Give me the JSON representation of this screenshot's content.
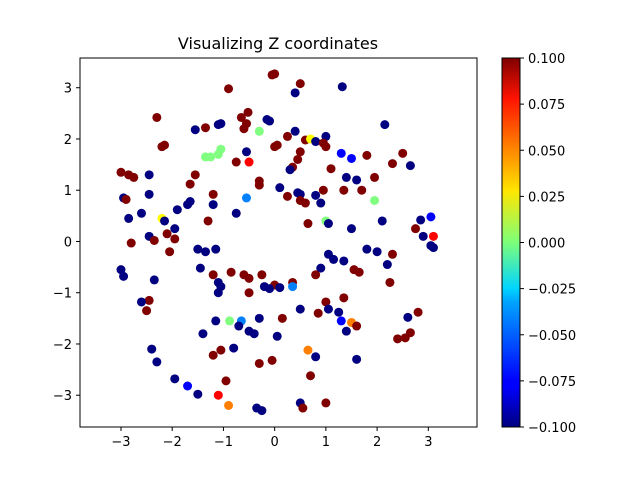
{
  "chart_data": {
    "type": "scatter",
    "title": "Visualizing Z coordinates",
    "xlabel": "",
    "ylabel": "",
    "xlim": [
      -3.8,
      3.95
    ],
    "ylim": [
      -3.62,
      3.58
    ],
    "xticks": [
      -3,
      -2,
      -1,
      0,
      1,
      2,
      3
    ],
    "yticks": [
      -3,
      -2,
      -1,
      0,
      1,
      2,
      3
    ],
    "grid": false,
    "colormap": "jet",
    "colorbar": {
      "range": [
        -0.1,
        0.1
      ],
      "ticks": [
        -0.1,
        -0.075,
        -0.05,
        -0.025,
        0.0,
        0.025,
        0.05,
        0.075,
        0.1
      ],
      "tick_labels": [
        "−0.100",
        "−0.075",
        "−0.050",
        "−0.025",
        "0.000",
        "0.025",
        "0.050",
        "0.075",
        "0.100"
      ]
    },
    "points": [
      {
        "x": -0.05,
        "y": 3.25,
        "z": 0.1
      },
      {
        "x": 0.0,
        "y": 3.27,
        "z": 0.1
      },
      {
        "x": 0.5,
        "y": 3.08,
        "z": 0.1
      },
      {
        "x": 1.32,
        "y": 3.02,
        "z": -0.1
      },
      {
        "x": -0.9,
        "y": 2.98,
        "z": 0.1
      },
      {
        "x": 0.4,
        "y": 2.9,
        "z": -0.1
      },
      {
        "x": -0.52,
        "y": 2.52,
        "z": 0.1
      },
      {
        "x": -2.3,
        "y": 2.42,
        "z": 0.1
      },
      {
        "x": -0.65,
        "y": 2.42,
        "z": 0.1
      },
      {
        "x": -0.15,
        "y": 2.38,
        "z": -0.1
      },
      {
        "x": -0.1,
        "y": 2.35,
        "z": -0.1
      },
      {
        "x": -0.55,
        "y": 2.3,
        "z": 0.1
      },
      {
        "x": 2.15,
        "y": 2.28,
        "z": -0.1
      },
      {
        "x": -1.05,
        "y": 2.3,
        "z": -0.1
      },
      {
        "x": -1.1,
        "y": 2.28,
        "z": -0.1
      },
      {
        "x": -1.35,
        "y": 2.22,
        "z": 0.1
      },
      {
        "x": -1.55,
        "y": 2.18,
        "z": -0.1
      },
      {
        "x": -0.6,
        "y": 2.2,
        "z": 0.1
      },
      {
        "x": -0.3,
        "y": 2.15,
        "z": 0.0
      },
      {
        "x": 0.4,
        "y": 2.15,
        "z": -0.1
      },
      {
        "x": 1.0,
        "y": 2.05,
        "z": -0.1
      },
      {
        "x": 0.25,
        "y": 2.05,
        "z": 0.1
      },
      {
        "x": 0.6,
        "y": 1.98,
        "z": 0.1
      },
      {
        "x": 0.7,
        "y": 2.0,
        "z": 0.025
      },
      {
        "x": 0.8,
        "y": 1.95,
        "z": -0.1
      },
      {
        "x": 0.95,
        "y": 1.92,
        "z": 0.1
      },
      {
        "x": 1.0,
        "y": 1.85,
        "z": 0.1
      },
      {
        "x": 0.05,
        "y": 1.88,
        "z": 0.1
      },
      {
        "x": 0.0,
        "y": 1.85,
        "z": 0.1
      },
      {
        "x": -2.15,
        "y": 1.88,
        "z": 0.1
      },
      {
        "x": -2.2,
        "y": 1.85,
        "z": 0.1
      },
      {
        "x": -1.05,
        "y": 1.8,
        "z": 0.0
      },
      {
        "x": -1.1,
        "y": 1.7,
        "z": 0.0
      },
      {
        "x": -1.35,
        "y": 1.65,
        "z": 0.0
      },
      {
        "x": -1.25,
        "y": 1.65,
        "z": 0.0
      },
      {
        "x": -0.55,
        "y": 1.75,
        "z": -0.1
      },
      {
        "x": 0.5,
        "y": 1.75,
        "z": 0.1
      },
      {
        "x": 1.3,
        "y": 1.72,
        "z": -0.075
      },
      {
        "x": 1.5,
        "y": 1.62,
        "z": -0.075
      },
      {
        "x": 1.8,
        "y": 1.68,
        "z": 0.1
      },
      {
        "x": 2.5,
        "y": 1.72,
        "z": 0.1
      },
      {
        "x": 0.45,
        "y": 1.6,
        "z": 0.1
      },
      {
        "x": -0.75,
        "y": 1.55,
        "z": 0.1
      },
      {
        "x": -0.5,
        "y": 1.55,
        "z": 0.075
      },
      {
        "x": 2.3,
        "y": 1.52,
        "z": 0.1
      },
      {
        "x": 2.65,
        "y": 1.48,
        "z": -0.1
      },
      {
        "x": 0.35,
        "y": 1.45,
        "z": 0.1
      },
      {
        "x": 0.3,
        "y": 1.4,
        "z": -0.1
      },
      {
        "x": 1.1,
        "y": 1.42,
        "z": 0.1
      },
      {
        "x": -3.0,
        "y": 1.35,
        "z": 0.1
      },
      {
        "x": -2.85,
        "y": 1.3,
        "z": 0.1
      },
      {
        "x": -2.75,
        "y": 1.25,
        "z": 0.1
      },
      {
        "x": -2.45,
        "y": 1.3,
        "z": -0.1
      },
      {
        "x": -1.55,
        "y": 1.3,
        "z": 0.1
      },
      {
        "x": 1.4,
        "y": 1.25,
        "z": -0.1
      },
      {
        "x": 1.6,
        "y": 1.2,
        "z": -0.1
      },
      {
        "x": 1.95,
        "y": 1.25,
        "z": 0.1
      },
      {
        "x": -0.3,
        "y": 1.18,
        "z": 0.1
      },
      {
        "x": -1.65,
        "y": 1.12,
        "z": 0.1
      },
      {
        "x": -0.3,
        "y": 1.1,
        "z": 0.1
      },
      {
        "x": 0.1,
        "y": 1.05,
        "z": -0.1
      },
      {
        "x": 0.95,
        "y": 1.0,
        "z": 0.1
      },
      {
        "x": 1.35,
        "y": 1.0,
        "z": 0.1
      },
      {
        "x": 1.7,
        "y": 1.0,
        "z": 0.1
      },
      {
        "x": -2.95,
        "y": 0.85,
        "z": -0.1
      },
      {
        "x": -2.9,
        "y": 0.82,
        "z": 0.1
      },
      {
        "x": -2.45,
        "y": 0.92,
        "z": -0.1
      },
      {
        "x": -1.2,
        "y": 0.92,
        "z": 0.1
      },
      {
        "x": 0.45,
        "y": 0.95,
        "z": -0.1
      },
      {
        "x": 0.5,
        "y": 0.92,
        "z": -0.1
      },
      {
        "x": 0.8,
        "y": 0.9,
        "z": -0.1
      },
      {
        "x": 1.95,
        "y": 0.8,
        "z": 0.0
      },
      {
        "x": 0.25,
        "y": 0.88,
        "z": 0.1
      },
      {
        "x": 0.5,
        "y": 0.8,
        "z": 0.1
      },
      {
        "x": 0.6,
        "y": 0.75,
        "z": 0.1
      },
      {
        "x": 0.9,
        "y": 0.75,
        "z": -0.1
      },
      {
        "x": -0.55,
        "y": 0.85,
        "z": -0.05
      },
      {
        "x": -1.65,
        "y": 0.78,
        "z": -0.1
      },
      {
        "x": -1.7,
        "y": 0.72,
        "z": -0.1
      },
      {
        "x": -1.2,
        "y": 0.72,
        "z": -0.1
      },
      {
        "x": -1.9,
        "y": 0.62,
        "z": -0.1
      },
      {
        "x": -0.75,
        "y": 0.55,
        "z": -0.1
      },
      {
        "x": -2.6,
        "y": 0.55,
        "z": -0.1
      },
      {
        "x": -2.2,
        "y": 0.45,
        "z": 0.025
      },
      {
        "x": -2.85,
        "y": 0.45,
        "z": -0.1
      },
      {
        "x": -2.15,
        "y": 0.4,
        "z": -0.1
      },
      {
        "x": 2.1,
        "y": 0.4,
        "z": -0.1
      },
      {
        "x": 2.85,
        "y": 0.42,
        "z": -0.1
      },
      {
        "x": 3.05,
        "y": 0.48,
        "z": -0.075
      },
      {
        "x": 1.0,
        "y": 0.4,
        "z": 0.0
      },
      {
        "x": 1.05,
        "y": 0.35,
        "z": -0.1
      },
      {
        "x": -1.3,
        "y": 0.4,
        "z": 0.1
      },
      {
        "x": 0.65,
        "y": 0.35,
        "z": 0.1
      },
      {
        "x": 1.5,
        "y": 0.25,
        "z": -0.1
      },
      {
        "x": -1.95,
        "y": 0.25,
        "z": -0.1
      },
      {
        "x": -2.1,
        "y": 0.15,
        "z": 0.1
      },
      {
        "x": -2.45,
        "y": 0.1,
        "z": -0.1
      },
      {
        "x": -2.35,
        "y": 0.02,
        "z": 0.1
      },
      {
        "x": 2.75,
        "y": 0.25,
        "z": 0.1
      },
      {
        "x": 2.9,
        "y": 0.1,
        "z": -0.1
      },
      {
        "x": 3.1,
        "y": 0.1,
        "z": 0.075
      },
      {
        "x": -2.8,
        "y": -0.03,
        "z": 0.1
      },
      {
        "x": -1.95,
        "y": 0.05,
        "z": 0.1
      },
      {
        "x": -1.5,
        "y": -0.15,
        "z": -0.1
      },
      {
        "x": -1.35,
        "y": -0.2,
        "z": -0.1
      },
      {
        "x": -1.15,
        "y": -0.15,
        "z": -0.1
      },
      {
        "x": 3.05,
        "y": -0.08,
        "z": -0.1
      },
      {
        "x": 3.1,
        "y": -0.12,
        "z": -0.1
      },
      {
        "x": 1.05,
        "y": -0.25,
        "z": -0.1
      },
      {
        "x": 1.8,
        "y": -0.15,
        "z": -0.1
      },
      {
        "x": 2.0,
        "y": -0.2,
        "z": -0.1
      },
      {
        "x": 2.3,
        "y": -0.25,
        "z": 0.1
      },
      {
        "x": -2.05,
        "y": -0.2,
        "z": 0.1
      },
      {
        "x": 1.15,
        "y": -0.35,
        "z": -0.1
      },
      {
        "x": 1.35,
        "y": -0.38,
        "z": -0.1
      },
      {
        "x": 2.2,
        "y": -0.45,
        "z": -0.1
      },
      {
        "x": -3.0,
        "y": -0.55,
        "z": -0.1
      },
      {
        "x": -1.45,
        "y": -0.52,
        "z": -0.1
      },
      {
        "x": 0.9,
        "y": -0.52,
        "z": -0.1
      },
      {
        "x": 1.55,
        "y": -0.55,
        "z": 0.1
      },
      {
        "x": 1.65,
        "y": -0.6,
        "z": 0.1
      },
      {
        "x": -1.2,
        "y": -0.65,
        "z": 0.1
      },
      {
        "x": -0.85,
        "y": -0.6,
        "z": 0.1
      },
      {
        "x": -0.6,
        "y": -0.65,
        "z": 0.1
      },
      {
        "x": -0.5,
        "y": -0.72,
        "z": 0.1
      },
      {
        "x": -0.25,
        "y": -0.65,
        "z": 0.1
      },
      {
        "x": 0.8,
        "y": -0.65,
        "z": 0.1
      },
      {
        "x": -2.95,
        "y": -0.68,
        "z": -0.1
      },
      {
        "x": -2.35,
        "y": -0.75,
        "z": -0.1
      },
      {
        "x": -1.1,
        "y": -0.8,
        "z": -0.1
      },
      {
        "x": 0.35,
        "y": -0.8,
        "z": 0.1
      },
      {
        "x": 0.0,
        "y": -0.85,
        "z": 0.1
      },
      {
        "x": 2.25,
        "y": -0.8,
        "z": 0.1
      },
      {
        "x": -1.05,
        "y": -0.88,
        "z": -0.1
      },
      {
        "x": -0.2,
        "y": -0.88,
        "z": -0.1
      },
      {
        "x": -0.1,
        "y": -0.92,
        "z": -0.1
      },
      {
        "x": 0.1,
        "y": -0.9,
        "z": -0.1
      },
      {
        "x": 0.35,
        "y": -0.88,
        "z": -0.05
      },
      {
        "x": -1.1,
        "y": -1.0,
        "z": -0.1
      },
      {
        "x": -0.5,
        "y": -1.0,
        "z": 0.1
      },
      {
        "x": 1.35,
        "y": -1.1,
        "z": 0.1
      },
      {
        "x": -2.45,
        "y": -1.15,
        "z": 0.1
      },
      {
        "x": -2.6,
        "y": -1.18,
        "z": -0.1
      },
      {
        "x": 1.0,
        "y": -1.18,
        "z": 0.1
      },
      {
        "x": 1.05,
        "y": -1.32,
        "z": -0.1
      },
      {
        "x": -2.5,
        "y": -1.35,
        "z": 0.1
      },
      {
        "x": 0.5,
        "y": -1.32,
        "z": -0.1
      },
      {
        "x": 0.85,
        "y": -1.4,
        "z": 0.1
      },
      {
        "x": 1.25,
        "y": -1.38,
        "z": -0.1
      },
      {
        "x": 2.8,
        "y": -1.38,
        "z": 0.1
      },
      {
        "x": 2.6,
        "y": -1.48,
        "z": -0.1
      },
      {
        "x": -0.3,
        "y": -1.5,
        "z": -0.1
      },
      {
        "x": 0.15,
        "y": -1.5,
        "z": 0.1
      },
      {
        "x": -1.15,
        "y": -1.55,
        "z": -0.1
      },
      {
        "x": -0.88,
        "y": -1.55,
        "z": 0.0
      },
      {
        "x": -0.65,
        "y": -1.55,
        "z": -0.05
      },
      {
        "x": 1.3,
        "y": -1.55,
        "z": -0.075
      },
      {
        "x": 1.5,
        "y": -1.58,
        "z": 0.05
      },
      {
        "x": 1.6,
        "y": -1.65,
        "z": 0.1
      },
      {
        "x": -0.7,
        "y": -1.65,
        "z": -0.1
      },
      {
        "x": -0.5,
        "y": -1.75,
        "z": -0.1
      },
      {
        "x": -0.4,
        "y": -1.8,
        "z": -0.1
      },
      {
        "x": -1.4,
        "y": -1.8,
        "z": -0.1
      },
      {
        "x": 1.4,
        "y": -1.75,
        "z": -0.1
      },
      {
        "x": 2.65,
        "y": -1.78,
        "z": 0.1
      },
      {
        "x": 0.05,
        "y": -1.85,
        "z": -0.1
      },
      {
        "x": 2.4,
        "y": -1.9,
        "z": 0.1
      },
      {
        "x": 2.55,
        "y": -1.88,
        "z": 0.1
      },
      {
        "x": -2.4,
        "y": -2.1,
        "z": -0.1
      },
      {
        "x": -1.05,
        "y": -2.12,
        "z": 0.1
      },
      {
        "x": -0.8,
        "y": -2.08,
        "z": -0.1
      },
      {
        "x": 0.65,
        "y": -2.12,
        "z": 0.05
      },
      {
        "x": -1.2,
        "y": -2.22,
        "z": 0.1
      },
      {
        "x": 0.8,
        "y": -2.25,
        "z": -0.1
      },
      {
        "x": 1.6,
        "y": -2.3,
        "z": -0.1
      },
      {
        "x": -0.05,
        "y": -2.32,
        "z": 0.1
      },
      {
        "x": -2.3,
        "y": -2.35,
        "z": -0.1
      },
      {
        "x": -0.3,
        "y": -2.38,
        "z": 0.1
      },
      {
        "x": 0.7,
        "y": -2.62,
        "z": 0.1
      },
      {
        "x": -1.95,
        "y": -2.68,
        "z": -0.1
      },
      {
        "x": -0.95,
        "y": -2.72,
        "z": 0.1
      },
      {
        "x": -1.7,
        "y": -2.82,
        "z": -0.075
      },
      {
        "x": -1.5,
        "y": -2.98,
        "z": -0.1
      },
      {
        "x": -1.1,
        "y": -3.0,
        "z": 0.075
      },
      {
        "x": -0.9,
        "y": -3.2,
        "z": 0.05
      },
      {
        "x": 0.5,
        "y": -3.15,
        "z": -0.1
      },
      {
        "x": 0.55,
        "y": -3.25,
        "z": 0.1
      },
      {
        "x": 1.0,
        "y": -3.15,
        "z": 0.1
      },
      {
        "x": -0.35,
        "y": -3.25,
        "z": -0.1
      },
      {
        "x": -0.25,
        "y": -3.3,
        "z": -0.1
      }
    ]
  }
}
